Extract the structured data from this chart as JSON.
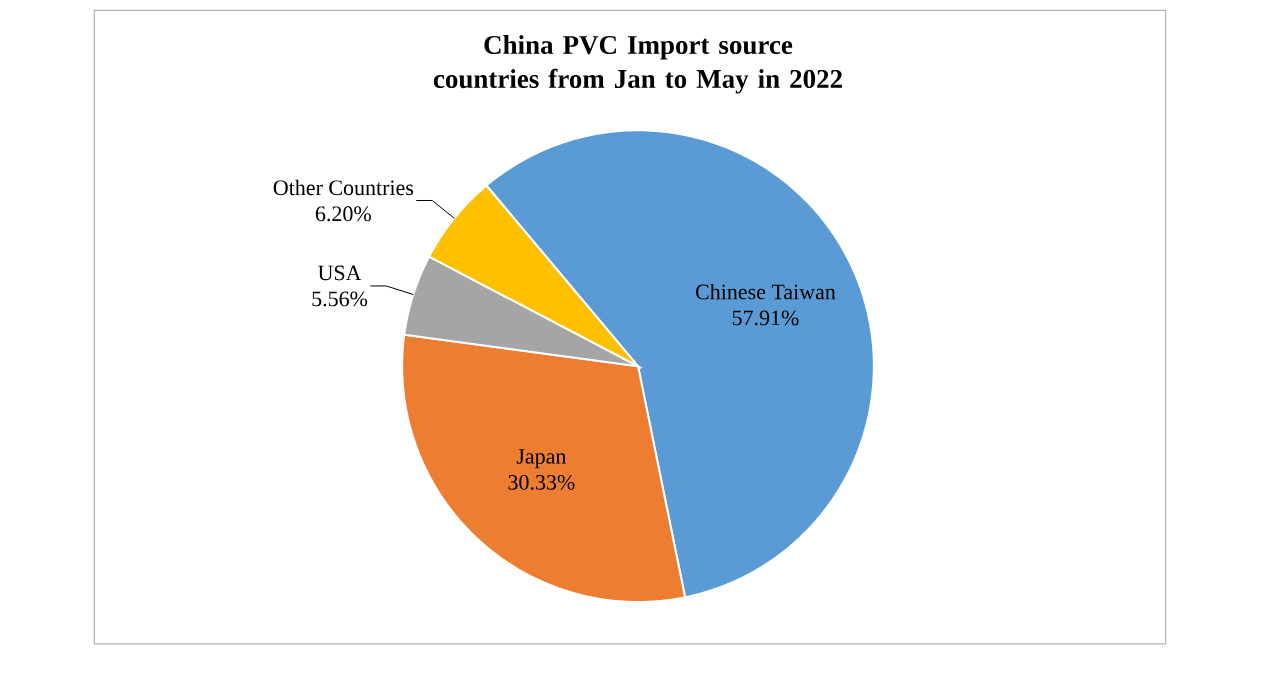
{
  "chart_data": {
    "type": "pie",
    "title": "China PVC Import source countries from Jan to May in 2022",
    "categories": [
      "Chinese Taiwan",
      "Japan",
      "USA",
      "Other Countries"
    ],
    "values": [
      57.91,
      30.33,
      5.56,
      6.2
    ],
    "value_labels": [
      "57.91%",
      "30.33%",
      "5.56%",
      "6.20%"
    ],
    "colors": [
      "#5b9bd5",
      "#ed7d31",
      "#a5a5a5",
      "#ffc000"
    ]
  }
}
